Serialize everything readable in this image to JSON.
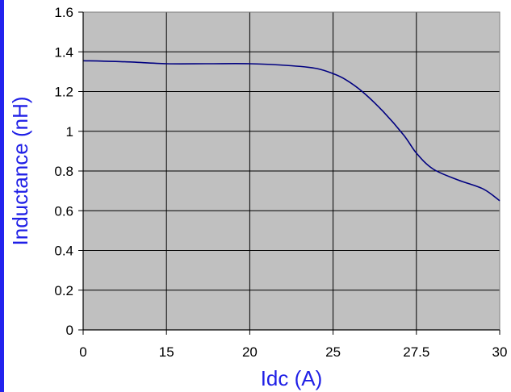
{
  "chart_data": {
    "type": "line",
    "title": "",
    "xlabel": "Idc (A)",
    "ylabel": "Inductance (nH)",
    "x_tick_labels": [
      "0",
      "15",
      "20",
      "25",
      "27.5",
      "30"
    ],
    "y_tick_labels": [
      "0",
      "0.2",
      "0.4",
      "0.6",
      "0.8",
      "1",
      "1.2",
      "1.4",
      "1.6"
    ],
    "ylim": [
      0,
      1.6
    ],
    "grid": true,
    "legend": "none",
    "series": [
      {
        "x_position": [
          0,
          0.5,
          1.0,
          1.5,
          2.0,
          2.5,
          2.8,
          3.0,
          3.15,
          3.35,
          3.6,
          3.85,
          4.0,
          4.2,
          4.5,
          4.8,
          5.0
        ],
        "values": [
          1.355,
          1.35,
          1.34,
          1.34,
          1.34,
          1.33,
          1.316,
          1.29,
          1.26,
          1.2,
          1.1,
          0.98,
          0.89,
          0.81,
          0.755,
          0.71,
          0.65
        ]
      }
    ],
    "colors": {
      "plot_background": "#c0c0c0",
      "line": "#000080",
      "axis_title": "#1f1fe6",
      "grid": "#000000",
      "left_strip": "#2222ee"
    }
  }
}
